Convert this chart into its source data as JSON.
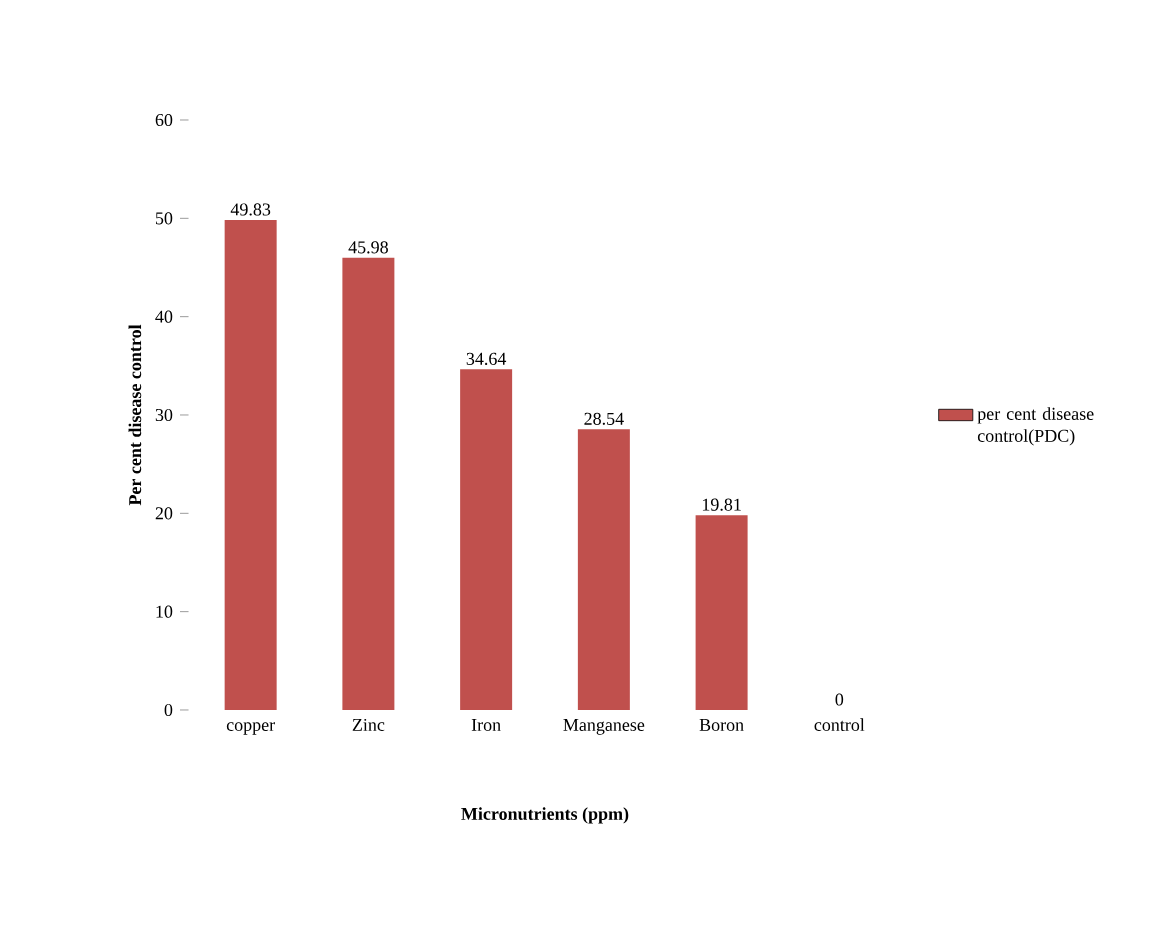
{
  "chart_data": {
    "type": "bar",
    "xlabel": "Micronutrients (ppm)",
    "ylabel": "Per cent disease control",
    "categories": [
      "copper",
      "Zinc",
      "Iron",
      "Manganese",
      "Boron",
      "control"
    ],
    "series": [
      {
        "name": "per cent disease control(PDC)",
        "color": "#c0504d",
        "values": [
          49.83,
          45.98,
          34.64,
          28.54,
          19.81,
          0
        ]
      }
    ],
    "ylim": [
      0,
      60
    ],
    "yticks": [
      0,
      10,
      20,
      30,
      40,
      50,
      60
    ],
    "data_labels": true,
    "legend": "right",
    "grid": false
  }
}
